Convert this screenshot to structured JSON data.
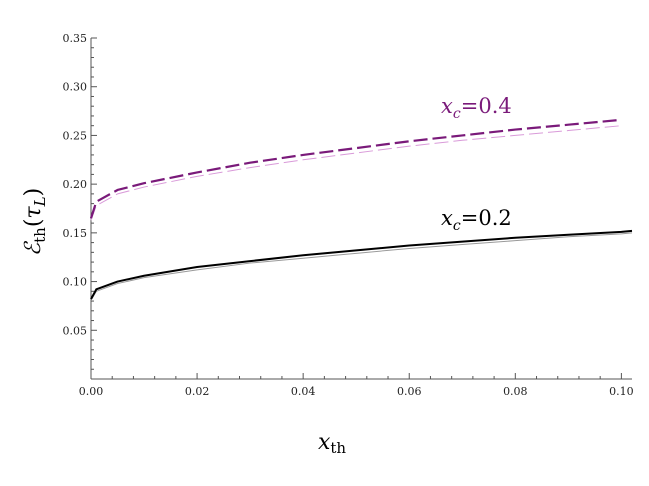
{
  "chart_data": {
    "type": "line",
    "title": "",
    "xlabel": "x_th",
    "ylabel": "ℰ_th(τ_L)",
    "xlabel_parts": {
      "main": "x",
      "sub": "th"
    },
    "ylabel_parts": {
      "main": "ℰ",
      "sub": "th",
      "arg_main": "τ",
      "arg_sub": "L"
    },
    "xlim": [
      0,
      0.102
    ],
    "ylim": [
      0,
      0.35
    ],
    "x_ticks": [
      "0.00",
      "0.02",
      "0.04",
      "0.06",
      "0.08",
      "0.10"
    ],
    "y_ticks": [
      "0.05",
      "0.10",
      "0.15",
      "0.20",
      "0.25",
      "0.30",
      "0.35"
    ],
    "grid": false,
    "series": [
      {
        "color": "#7a1a7a",
        "style": "dashed",
        "x": [
          0,
          0.001,
          0.005,
          0.01,
          0.02,
          0.03,
          0.04,
          0.05,
          0.06,
          0.07,
          0.08,
          0.09,
          0.1
        ],
        "values": [
          0.165,
          0.182,
          0.194,
          0.201,
          0.212,
          0.222,
          0.23,
          0.237,
          0.244,
          0.25,
          0.256,
          0.261,
          0.266
        ]
      },
      {
        "color": "#d99ad9",
        "style": "dashed-thin",
        "x": [
          0,
          0.001,
          0.005,
          0.01,
          0.02,
          0.03,
          0.04,
          0.05,
          0.06,
          0.07,
          0.08,
          0.09,
          0.1
        ],
        "values": [
          0.163,
          0.178,
          0.19,
          0.197,
          0.208,
          0.217,
          0.225,
          0.232,
          0.239,
          0.245,
          0.25,
          0.255,
          0.26
        ]
      },
      {
        "color": "#000000",
        "style": "solid",
        "x": [
          0,
          0.001,
          0.005,
          0.01,
          0.02,
          0.03,
          0.04,
          0.05,
          0.06,
          0.07,
          0.08,
          0.09,
          0.1,
          0.102
        ],
        "values": [
          0.082,
          0.092,
          0.1,
          0.106,
          0.115,
          0.121,
          0.127,
          0.132,
          0.137,
          0.141,
          0.145,
          0.148,
          0.151,
          0.152
        ]
      },
      {
        "color": "#9a9a9a",
        "style": "solid-thin",
        "x": [
          0,
          0.001,
          0.005,
          0.01,
          0.02,
          0.03,
          0.04,
          0.05,
          0.06,
          0.07,
          0.08,
          0.09,
          0.1,
          0.102
        ],
        "values": [
          0.081,
          0.09,
          0.098,
          0.104,
          0.112,
          0.119,
          0.124,
          0.129,
          0.134,
          0.138,
          0.142,
          0.146,
          0.149,
          0.15
        ]
      }
    ],
    "annotations": [
      {
        "main": "x",
        "sub": "c",
        "text": "=0.4",
        "color": "#7a1a7a",
        "x": 0.066,
        "y": 0.273
      },
      {
        "main": "x",
        "sub": "c",
        "text": "=0.2",
        "color": "#000000",
        "x": 0.066,
        "y": 0.158
      }
    ]
  }
}
